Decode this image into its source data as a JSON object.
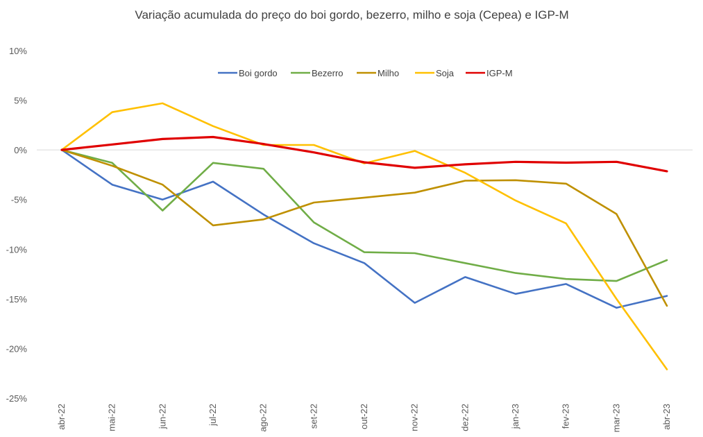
{
  "chart_data": {
    "type": "line",
    "title": "Variação acumulada do preço do boi gordo, bezerro, milho e soja (Cepea) e IGP-M",
    "xlabel": "",
    "ylabel": "",
    "categories": [
      "abr-22",
      "mai-22",
      "jun-22",
      "jul-22",
      "ago-22",
      "set-22",
      "out-22",
      "nov-22",
      "dez-22",
      "jan-23",
      "fev-23",
      "mar-23",
      "abr-23"
    ],
    "y_ticks": [
      10,
      5,
      0,
      -5,
      -10,
      -15,
      -20,
      -25
    ],
    "y_tick_labels": [
      "10%",
      "5%",
      "0%",
      "-5%",
      "-10%",
      "-15%",
      "-20%",
      "-25%"
    ],
    "ylim": [
      -25,
      10
    ],
    "y_unit": "%",
    "grid": "zero line only",
    "legend_position": "top-center",
    "series": [
      {
        "name": "Boi gordo",
        "color": "#4472C4",
        "values": [
          0,
          -3.5,
          -5.0,
          -3.2,
          -6.5,
          -9.4,
          -11.4,
          -15.4,
          -12.8,
          -14.5,
          -13.5,
          -15.9,
          -14.7
        ]
      },
      {
        "name": "Bezerro",
        "color": "#70AD47",
        "values": [
          0,
          -1.3,
          -6.1,
          -1.3,
          -1.9,
          -7.3,
          -10.3,
          -10.4,
          -11.4,
          -12.4,
          -13.0,
          -13.2,
          -11.1
        ]
      },
      {
        "name": "Milho",
        "color": "#BF9000",
        "values": [
          0,
          -1.6,
          -3.5,
          -7.6,
          -7.0,
          -5.3,
          -4.8,
          -4.3,
          -3.1,
          -3.05,
          -3.4,
          -6.45,
          -15.7
        ]
      },
      {
        "name": "Soja",
        "color": "#FFC000",
        "values": [
          0,
          3.8,
          4.7,
          2.4,
          0.5,
          0.5,
          -1.35,
          -0.1,
          -2.3,
          -5.1,
          -7.4,
          -15.0,
          -22.1
        ]
      },
      {
        "name": "IGP-M",
        "color": "#E00000",
        "values": [
          0,
          0.55,
          1.1,
          1.3,
          0.6,
          -0.25,
          -1.25,
          -1.8,
          -1.45,
          -1.2,
          -1.28,
          -1.2,
          -2.15
        ]
      }
    ]
  }
}
